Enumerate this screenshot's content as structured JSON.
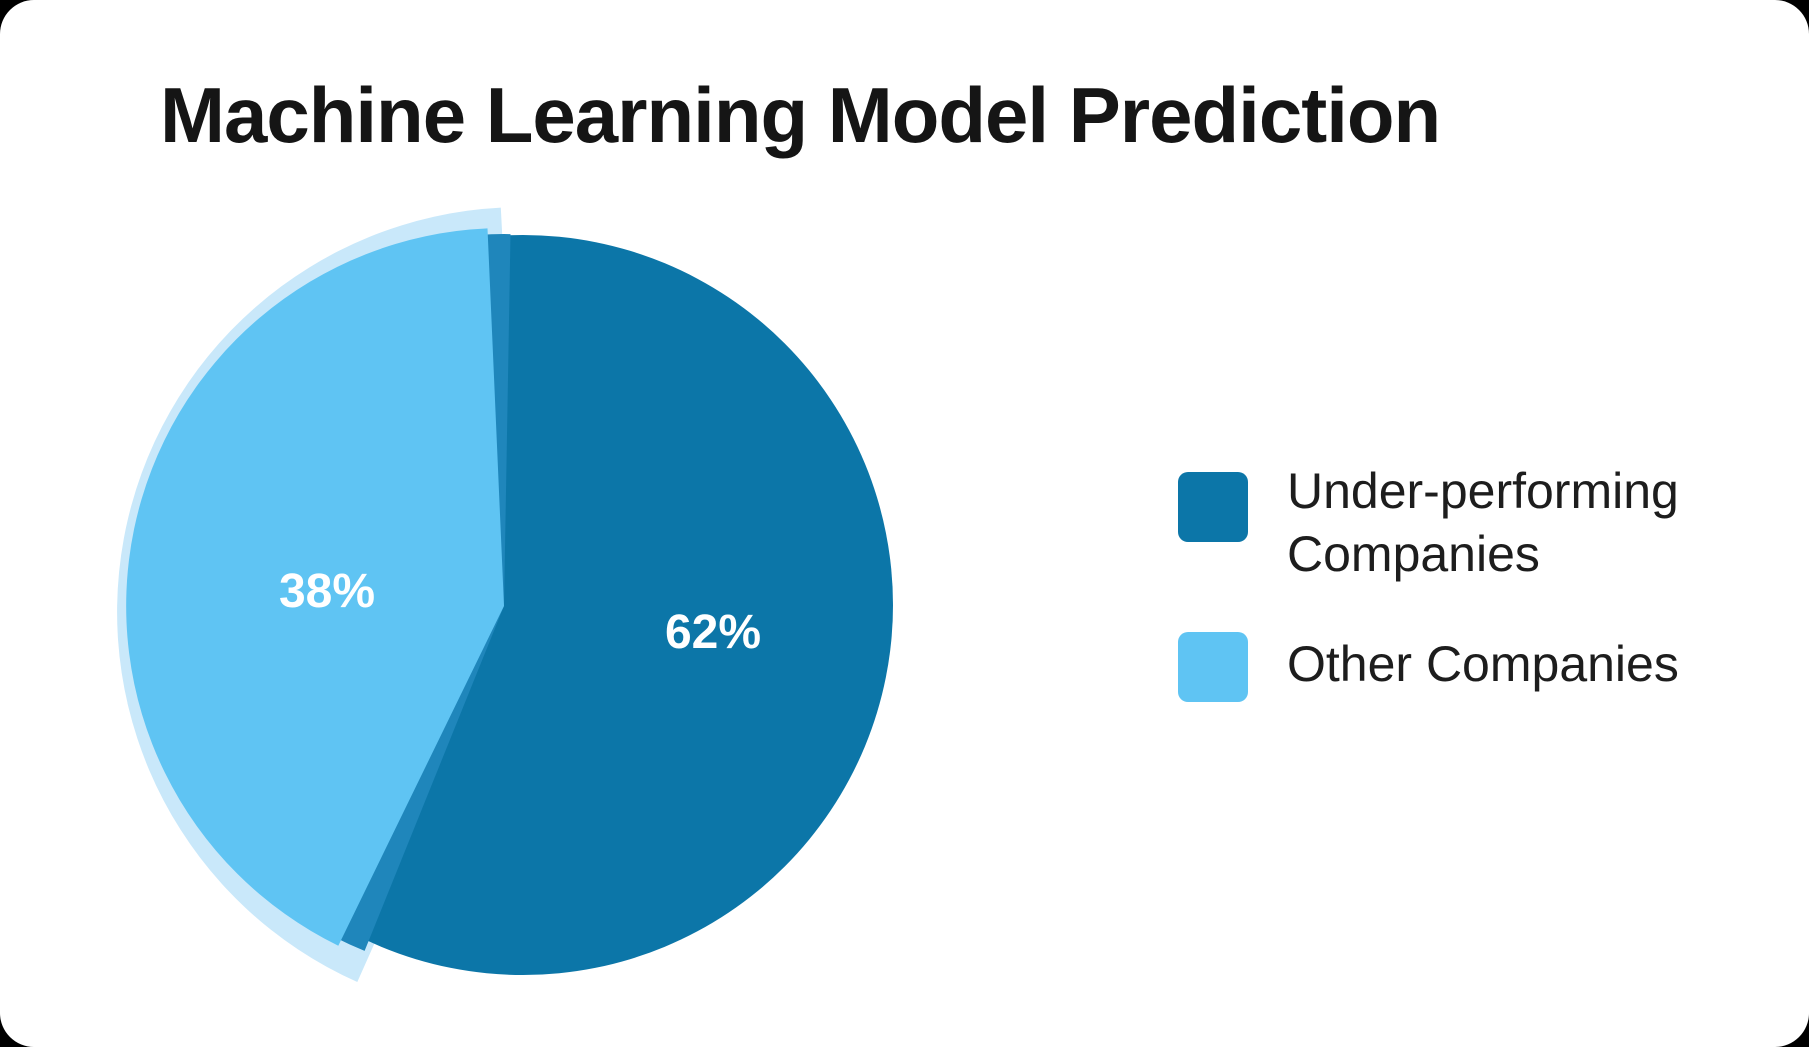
{
  "page": {
    "outer_background": "#000000",
    "card_background": "#FFFFFF",
    "text_color": "#1D1D1D"
  },
  "title": "Machine Learning Model Prediction",
  "chart_data": {
    "type": "pie",
    "title": "Machine Learning Model Prediction",
    "total": 100,
    "slices": [
      {
        "label": "Under-performing Companies",
        "value": 62,
        "display_label": "62%",
        "color": "#0C76A8"
      },
      {
        "label": "Other Companies",
        "value": 38,
        "display_label": "38%",
        "color": "#5FC4F3"
      }
    ],
    "data_label_color": "#FFFFFF",
    "legend_position": "right",
    "decoration": {
      "halo_color": "#C9E8FA",
      "shadow_color": "#1F86BB",
      "note": "38% slice is offset left with a pale outer halo arc and a medium-blue edge shadow"
    }
  },
  "legend": {
    "items": [
      {
        "label": "Under-performing Companies",
        "color": "#0C76A8"
      },
      {
        "label": "Other Companies",
        "color": "#5FC4F3"
      }
    ]
  }
}
